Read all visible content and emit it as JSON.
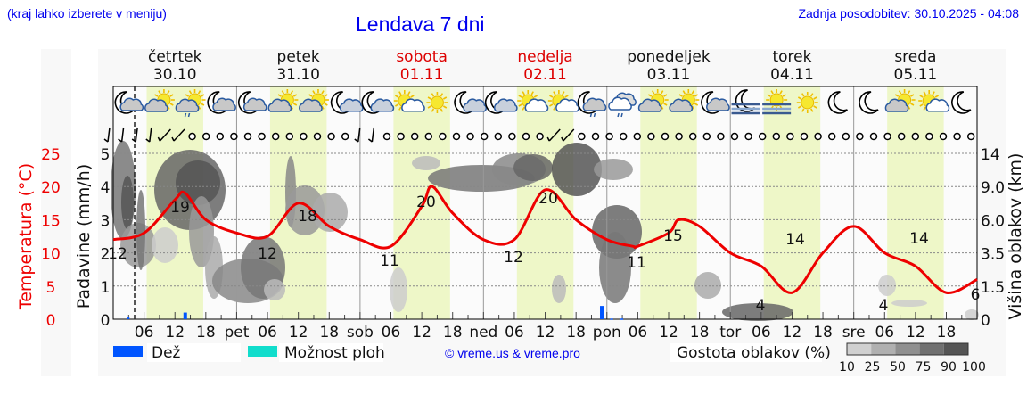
{
  "header": {
    "hint": "(kraj lahko izberete v meniju)",
    "title": "Lendava 7 dni",
    "updated": "Zadnja posodobitev: 30.10.2025 - 04:08"
  },
  "days": [
    {
      "name": "četrtek",
      "date": "30.10",
      "weekend": false,
      "short": ""
    },
    {
      "name": "petek",
      "date": "31.10",
      "weekend": false,
      "short": "pet"
    },
    {
      "name": "sobota",
      "date": "01.11",
      "weekend": true,
      "short": "sob"
    },
    {
      "name": "nedelja",
      "date": "02.11",
      "weekend": true,
      "short": "ned"
    },
    {
      "name": "ponedeljek",
      "date": "03.11",
      "weekend": false,
      "short": "pon"
    },
    {
      "name": "torek",
      "date": "04.11",
      "weekend": false,
      "short": "tor"
    },
    {
      "name": "sreda",
      "date": "05.11",
      "weekend": false,
      "short": "sre"
    }
  ],
  "icons": [
    "moon-cloud",
    "sun-cloud",
    "sun-cloud-rain",
    "moon-cloud",
    "moon-cloud",
    "sun-cloud",
    "sun-cloud",
    "moon-small-cloud",
    "moon-small-cloud",
    "sun-small-cloud",
    "sun",
    "moon-small-cloud",
    "moon-small-cloud",
    "sun-small-cloud",
    "sun-small-cloud",
    "moon-cloud-rain",
    "cloud-rain",
    "sun-cloud",
    "sun-cloud",
    "moon-cloud",
    "moon-fog",
    "sun-fog",
    "sun",
    "moon",
    "moon",
    "sun-cloud",
    "sun-small-cloud",
    "moon"
  ],
  "wind": [
    "barb",
    "barb",
    "barb",
    "barb",
    "barb-long",
    "barb-long",
    "calm",
    "calm",
    "calm",
    "calm",
    "calm",
    "calm",
    "calm",
    "calm",
    "calm",
    "calm",
    "calm",
    "calm",
    "barb",
    "barb",
    "calm",
    "calm",
    "calm",
    "calm",
    "calm",
    "calm",
    "calm",
    "calm",
    "calm",
    "calm",
    "calm",
    "calm",
    "barb-long",
    "barb-long",
    "calm",
    "calm",
    "calm",
    "calm",
    "calm",
    "calm",
    "calm",
    "calm",
    "calm",
    "calm",
    "calm",
    "calm",
    "calm",
    "calm",
    "calm",
    "calm",
    "calm",
    "calm",
    "calm",
    "calm",
    "calm",
    "calm",
    "calm",
    "calm",
    "calm",
    "calm",
    "calm",
    "calm",
    "calm"
  ],
  "axes": {
    "left_temp_label": "Temperatura (°C)",
    "left_precip_label": "Padavine (mm/h)",
    "right_label": "Višina oblakov (km)",
    "temp_ticks": [
      "0",
      "5",
      "10",
      "15",
      "20",
      "25"
    ],
    "precip_ticks": [
      "0",
      "1",
      "2",
      "3",
      "4",
      "5"
    ],
    "height_ticks": [
      "0",
      "1.5",
      "3.5",
      "6.0",
      "9.0",
      "14"
    ],
    "hour_ticks": [
      "06",
      "12",
      "18"
    ]
  },
  "legend": {
    "rain": "Dež",
    "storm": "Možnost ploh",
    "copyright": "© vreme.us & vreme.pro",
    "density_label": "Gostota oblakov (%)",
    "density_ticks": [
      "10",
      "25",
      "50",
      "75",
      "90",
      "100"
    ]
  },
  "colors": {
    "temp_line": "#ee0000",
    "rain": "#0055ff",
    "storm": "#11ddcc",
    "daylight": "#eef7c8",
    "link": "#0000ee",
    "weekend": "#dd0000"
  },
  "chart_data": {
    "type": "line",
    "title": "Lendava 7 dni",
    "xlabel": "",
    "ylabel": "Temperatura (°C)",
    "ylim": [
      0,
      25
    ],
    "x_hours": [
      0,
      6,
      12,
      14,
      18,
      24,
      30,
      36,
      42,
      48,
      54,
      60,
      62,
      66,
      72,
      78,
      84,
      90,
      96,
      101,
      102,
      108,
      110,
      114,
      120,
      126,
      132,
      138,
      144,
      150,
      156,
      162,
      168
    ],
    "series": [
      {
        "name": "Temperatura (°C)",
        "values": [
          12,
          13,
          18,
          19,
          15,
          13,
          12.5,
          17.5,
          14,
          12,
          11,
          17,
          20,
          16,
          12,
          12,
          19.5,
          15,
          12,
          11,
          11,
          13,
          15,
          14,
          10,
          8,
          4,
          10,
          14,
          10,
          8,
          4,
          6
        ]
      }
    ],
    "annotations": [
      {
        "label": "12",
        "day": "četrtek",
        "kind": "min"
      },
      {
        "label": "19",
        "day": "četrtek",
        "kind": "max"
      },
      {
        "label": "12",
        "day": "petek",
        "kind": "min"
      },
      {
        "label": "18",
        "day": "petek",
        "kind": "max"
      },
      {
        "label": "11",
        "day": "sobota",
        "kind": "min"
      },
      {
        "label": "20",
        "day": "sobota",
        "kind": "max"
      },
      {
        "label": "12",
        "day": "nedelja",
        "kind": "min"
      },
      {
        "label": "20",
        "day": "nedelja",
        "kind": "max"
      },
      {
        "label": "11",
        "day": "ponedeljek",
        "kind": "min"
      },
      {
        "label": "15",
        "day": "ponedeljek",
        "kind": "max"
      },
      {
        "label": "4",
        "day": "torek",
        "kind": "min"
      },
      {
        "label": "14",
        "day": "torek",
        "kind": "max"
      },
      {
        "label": "4",
        "day": "sreda",
        "kind": "min"
      },
      {
        "label": "14",
        "day": "sreda",
        "kind": "max"
      },
      {
        "label": "6",
        "day": "sreda",
        "kind": "end"
      }
    ],
    "precipitation_mm_h": [
      {
        "hour": 3,
        "value": 0.05
      },
      {
        "hour": 14,
        "value": 0.2
      },
      {
        "hour": 95,
        "value": 0.4
      },
      {
        "hour": 97,
        "value": 0.02
      },
      {
        "hour": 99,
        "value": 0.02
      }
    ],
    "secondary_axes": {
      "precip_ylim": [
        0,
        5
      ],
      "cloud_height_ticks_km": [
        0,
        1.5,
        3.5,
        6.0,
        9.0,
        14
      ]
    },
    "now_marker": "30.10.2025 04:08",
    "grid": true
  }
}
